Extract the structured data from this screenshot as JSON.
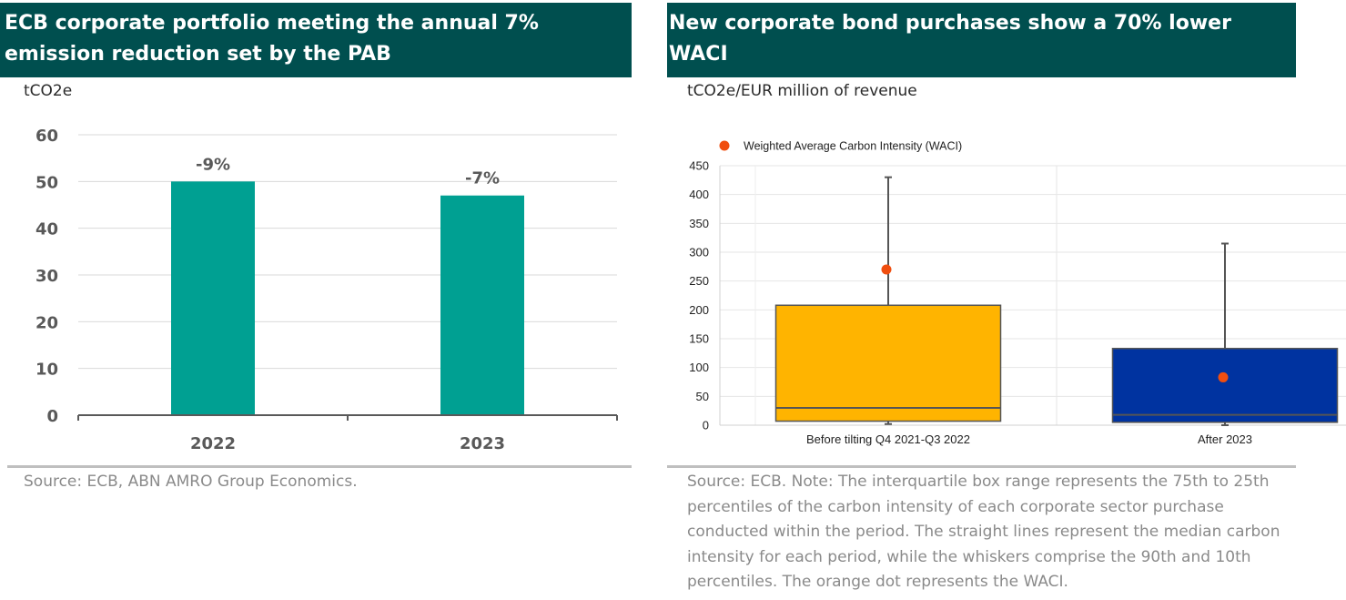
{
  "left": {
    "title": "ECB corporate portfolio meeting the annual 7% emission reduction set by the PAB",
    "unit": "tCO2e",
    "source": "Source: ECB, ABN AMRO Group Economics."
  },
  "right": {
    "title": "New corporate bond purchases show a 70% lower WACI",
    "unit": "tCO2e/EUR million of revenue",
    "source": "Source: ECB. Note: The interquartile box range represents the 75th to 25th percentiles of the carbon intensity of each corporate sector purchase conducted within the period. The straight lines represent the median carbon intensity for each period, while the whiskers comprise the 90th and 10th percentiles. The orange dot represents the WACI."
  },
  "chart_data": [
    {
      "type": "bar",
      "categories": [
        "2022",
        "2023"
      ],
      "values": [
        50,
        47
      ],
      "data_labels": [
        "-9%",
        "-7%"
      ],
      "ylim": [
        0,
        60
      ],
      "yticks": [
        0,
        10,
        20,
        30,
        40,
        50,
        60
      ],
      "grid": true,
      "colors": {
        "bar": "#00a092",
        "grid": "#d9d9d9",
        "axis": "#595959",
        "text": "#595959"
      }
    },
    {
      "type": "box",
      "categories": [
        "Before tilting Q4 2021-Q3 2022",
        "After 2023"
      ],
      "boxes": [
        {
          "whisker_low": 2,
          "q1": 7,
          "median": 30,
          "q3": 208,
          "whisker_high": 430,
          "waci": 270,
          "color": "#ffb400"
        },
        {
          "whisker_low": 0,
          "q1": 5,
          "median": 18,
          "q3": 133,
          "whisker_high": 315,
          "waci": 83,
          "color": "#0033a0"
        }
      ],
      "legend": {
        "label": "Weighted Average Carbon Intensity (WACI)",
        "position": "top-left",
        "color": "#f04e0f"
      },
      "ylim": [
        0,
        450
      ],
      "yticks": [
        0,
        50,
        100,
        150,
        200,
        250,
        300,
        350,
        400,
        450
      ],
      "grid": true
    }
  ]
}
